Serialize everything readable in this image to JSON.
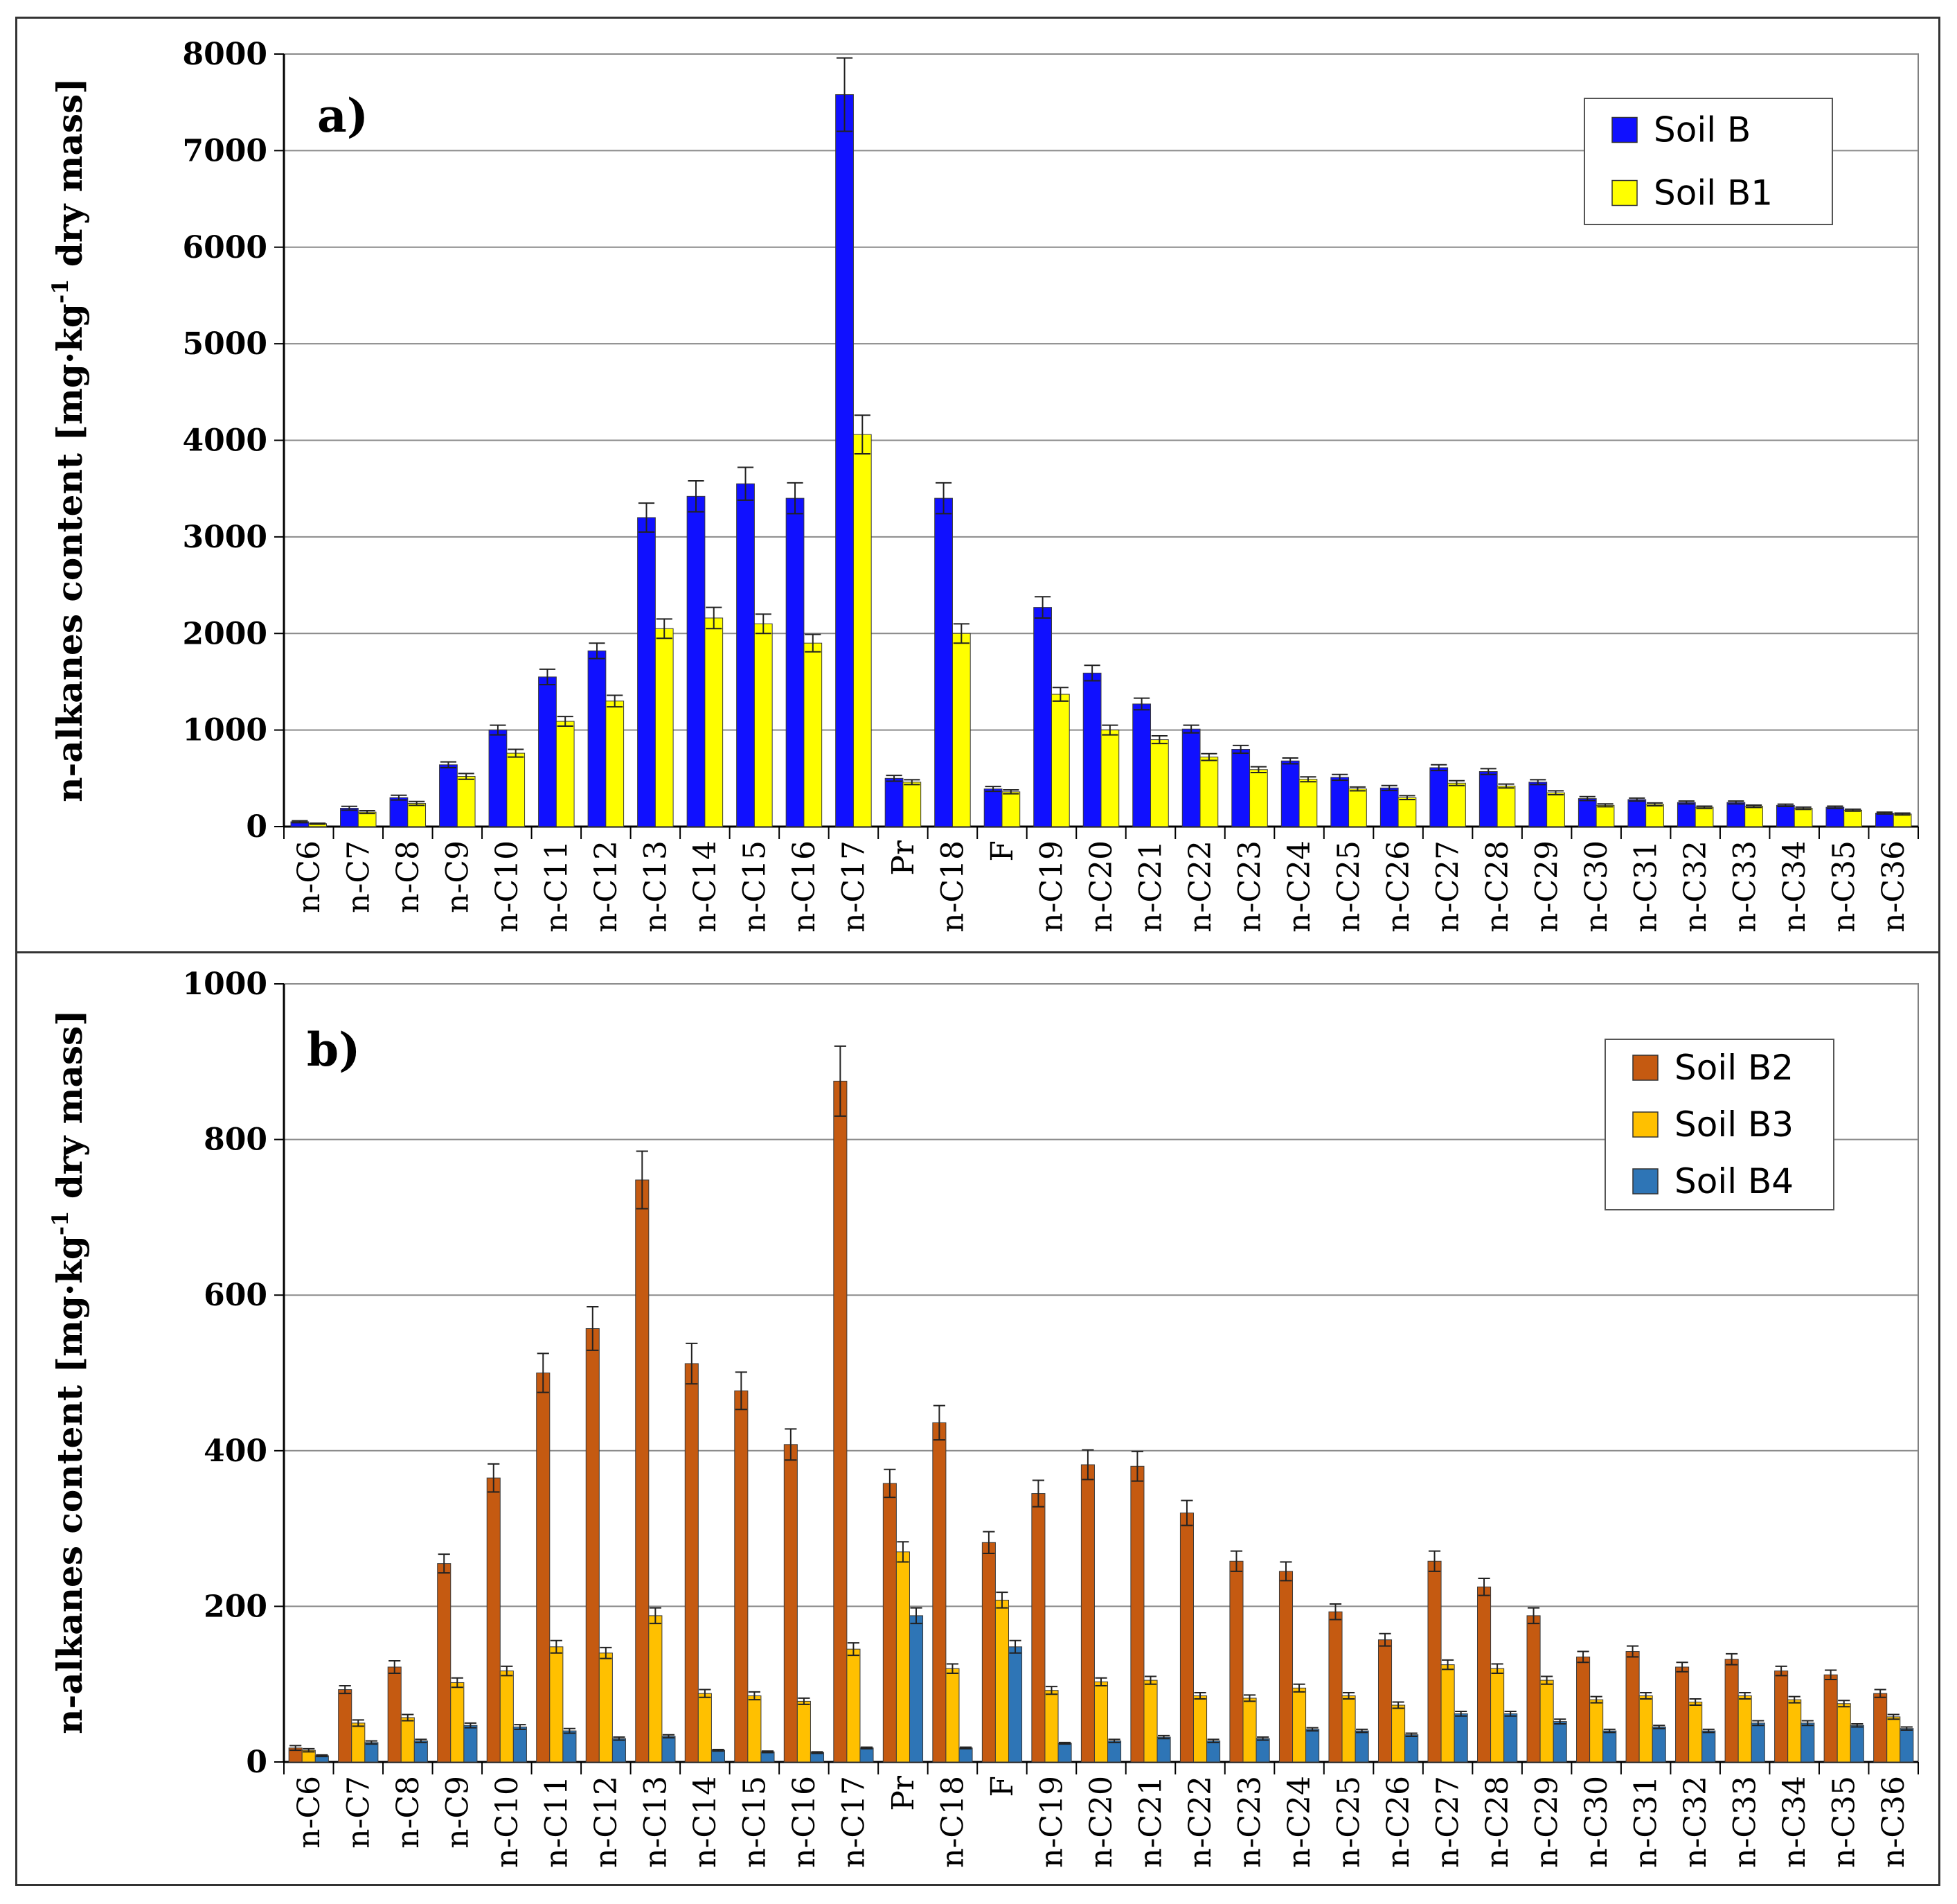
{
  "chart_data": [
    {
      "type": "bar",
      "panel_label": "a)",
      "ylabel": "n-alkanes content [mg·kg",
      "ylabel_sup": "-1",
      "ylabel_suffix": " dry mass]",
      "ylim": [
        0,
        8000
      ],
      "yticks": [
        "0",
        "1000",
        "2000",
        "3000",
        "4000",
        "5000",
        "6000",
        "7000",
        "8000"
      ],
      "grid": true,
      "legend_position": "top-right",
      "categories": [
        "n-C6",
        "n-C7",
        "n-C8",
        "n-C9",
        "n-C10",
        "n-C11",
        "n-C12",
        "n-C13",
        "n-C14",
        "n-C15",
        "n-C16",
        "n-C17",
        "Pr",
        "n-C18",
        "F",
        "n-C19",
        "n-C20",
        "n-C21",
        "n-C22",
        "n-C23",
        "n-C24",
        "n-C25",
        "n-C26",
        "n-C27",
        "n-C28",
        "n-C29",
        "n-C30",
        "n-C31",
        "n-C32",
        "n-C33",
        "n-C34",
        "n-C35",
        "n-C36"
      ],
      "series": [
        {
          "name": "Soil B",
          "color": "#1010ff",
          "values": [
            50,
            190,
            300,
            640,
            1000,
            1550,
            1820,
            3200,
            3420,
            3550,
            3400,
            7580,
            500,
            3400,
            390,
            2270,
            1590,
            1270,
            1010,
            800,
            680,
            510,
            400,
            610,
            570,
            460,
            290,
            280,
            250,
            250,
            220,
            200,
            140
          ],
          "errors": [
            10,
            20,
            25,
            30,
            50,
            80,
            80,
            150,
            160,
            170,
            160,
            380,
            30,
            160,
            25,
            110,
            80,
            60,
            40,
            40,
            30,
            30,
            25,
            30,
            30,
            25,
            20,
            15,
            15,
            15,
            12,
            12,
            10
          ]
        },
        {
          "name": "Soil B1",
          "color": "#ffff00",
          "values": [
            30,
            150,
            240,
            520,
            760,
            1090,
            1300,
            2050,
            2160,
            2100,
            1900,
            4060,
            460,
            2000,
            360,
            1370,
            1000,
            900,
            720,
            590,
            490,
            390,
            300,
            450,
            420,
            350,
            220,
            230,
            200,
            210,
            190,
            170,
            130
          ],
          "errors": [
            5,
            15,
            20,
            30,
            40,
            50,
            60,
            100,
            110,
            100,
            90,
            200,
            25,
            100,
            20,
            70,
            50,
            40,
            35,
            30,
            25,
            20,
            20,
            25,
            20,
            20,
            15,
            15,
            12,
            12,
            12,
            10,
            10
          ]
        }
      ]
    },
    {
      "type": "bar",
      "panel_label": "b)",
      "ylabel": "n-alkanes content [mg·kg",
      "ylabel_sup": "-1",
      "ylabel_suffix": " dry mass]",
      "ylim": [
        0,
        1000
      ],
      "yticks": [
        "0",
        "200",
        "400",
        "600",
        "800",
        "1000"
      ],
      "grid": true,
      "legend_position": "top-right",
      "categories": [
        "n-C6",
        "n-C7",
        "n-C8",
        "n-C9",
        "n-C10",
        "n-C11",
        "n-C12",
        "n-C13",
        "n-C14",
        "n-C15",
        "n-C16",
        "n-C17",
        "Pr",
        "n-C18",
        "F",
        "n-C19",
        "n-C20",
        "n-C21",
        "n-C22",
        "n-C23",
        "n-C24",
        "n-C25",
        "n-C26",
        "n-C27",
        "n-C28",
        "n-C29",
        "n-C30",
        "n-C31",
        "n-C32",
        "n-C33",
        "n-C34",
        "n-C35",
        "n-C36"
      ],
      "series": [
        {
          "name": "Soil B2",
          "color": "#c55a11",
          "values": [
            18,
            93,
            122,
            255,
            365,
            500,
            557,
            748,
            512,
            477,
            408,
            875,
            358,
            436,
            282,
            345,
            382,
            380,
            320,
            258,
            245,
            193,
            157,
            258,
            225,
            188,
            135,
            142,
            122,
            132,
            117,
            112,
            88
          ],
          "errors": [
            3,
            5,
            8,
            12,
            18,
            25,
            28,
            37,
            26,
            24,
            20,
            45,
            18,
            22,
            14,
            17,
            19,
            19,
            16,
            13,
            12,
            10,
            8,
            13,
            11,
            10,
            7,
            7,
            6,
            7,
            6,
            6,
            5
          ]
        },
        {
          "name": "Soil B3",
          "color": "#ffc000",
          "values": [
            15,
            50,
            57,
            102,
            117,
            148,
            140,
            188,
            88,
            85,
            78,
            145,
            270,
            120,
            208,
            92,
            103,
            105,
            85,
            82,
            95,
            85,
            73,
            125,
            120,
            105,
            80,
            85,
            77,
            85,
            80,
            75,
            58
          ],
          "errors": [
            2,
            4,
            4,
            6,
            6,
            8,
            7,
            10,
            5,
            5,
            4,
            8,
            13,
            6,
            10,
            5,
            5,
            5,
            4,
            4,
            5,
            4,
            4,
            6,
            6,
            5,
            4,
            4,
            4,
            4,
            4,
            4,
            3
          ]
        },
        {
          "name": "Soil B4",
          "color": "#2e75b6",
          "values": [
            8,
            25,
            27,
            47,
            45,
            40,
            30,
            33,
            15,
            13,
            12,
            18,
            188,
            18,
            148,
            24,
            27,
            32,
            27,
            30,
            42,
            40,
            35,
            62,
            62,
            52,
            40,
            45,
            40,
            50,
            50,
            47,
            43
          ],
          "errors": [
            1,
            2,
            2,
            3,
            3,
            3,
            2,
            2,
            1,
            1,
            1,
            1,
            10,
            1,
            8,
            1,
            2,
            2,
            2,
            2,
            2,
            2,
            2,
            3,
            3,
            3,
            2,
            2,
            2,
            3,
            3,
            2,
            2
          ]
        }
      ]
    }
  ]
}
